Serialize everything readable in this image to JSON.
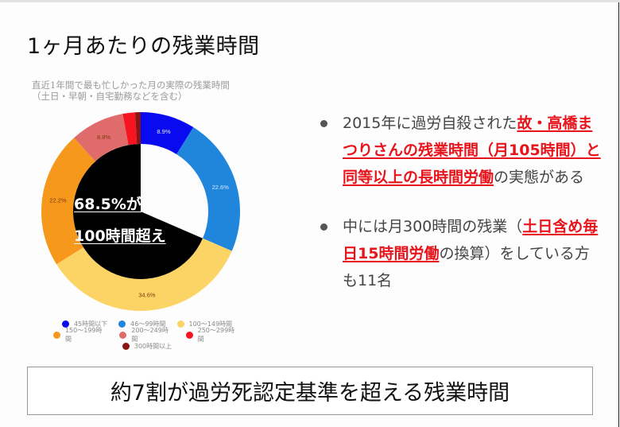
{
  "slide": {
    "title": "1ヶ月あたりの残業時間",
    "conclusion": "約7割が過労死認定基準を超える残業時間"
  },
  "chart_data": {
    "type": "pie",
    "subtype": "donut",
    "title": "直近1年間で最も忙しかった月の実際の残業時間",
    "subtitle": "（土日・早朝・自宅勤務などを含む）",
    "categories": [
      "45時間以下",
      "46〜99時間",
      "100〜149時間",
      "150〜199時間",
      "200〜249時間",
      "250〜299時間",
      "300時間以上"
    ],
    "values": [
      8.9,
      22.6,
      34.6,
      22.2,
      8.8,
      2.0,
      0.9
    ],
    "value_labels": [
      "8.9%",
      "22.6%",
      "34.6%",
      "22.2%",
      "8.8%",
      "",
      ""
    ],
    "colors": [
      "#0a0af0",
      "#1f86dc",
      "#fcd466",
      "#f6981b",
      "#e06b6b",
      "#f5141f",
      "#8a1414"
    ],
    "start_angle_deg": 0,
    "direction": "clockwise",
    "legend_position": "bottom",
    "annotation": {
      "line1": "68.5%が",
      "line2": "100時間超え",
      "covered_share_percent": 68.5
    }
  },
  "legend": {
    "rows": [
      [
        {
          "label": "45時間以下",
          "color": "#0a0af0"
        },
        {
          "label": "46〜99時間",
          "color": "#1f86dc"
        },
        {
          "label": "100〜149時間",
          "color": "#fcd466"
        }
      ],
      [
        {
          "label": "150〜199時間",
          "color": "#f6981b"
        },
        {
          "label": "200〜249時間",
          "color": "#e06b6b"
        },
        {
          "label": "250〜299時間",
          "color": "#f5141f"
        }
      ],
      [
        {
          "label": "300時間以上",
          "color": "#8a1414"
        }
      ]
    ]
  },
  "bullets": [
    {
      "parts": [
        {
          "text": "2015年に過労自殺された",
          "highlight": false
        },
        {
          "text": "故・高橋まつりさんの残業時間（月105時間）と同等以上の長時間労働",
          "highlight": true
        },
        {
          "text": "の実態がある",
          "highlight": false
        }
      ]
    },
    {
      "parts": [
        {
          "text": "中には月300時間の残業（",
          "highlight": false
        },
        {
          "text": "土日含め毎日15時間労働",
          "highlight": true
        },
        {
          "text": "の換算）をしている方も11名",
          "highlight": false
        }
      ]
    }
  ]
}
